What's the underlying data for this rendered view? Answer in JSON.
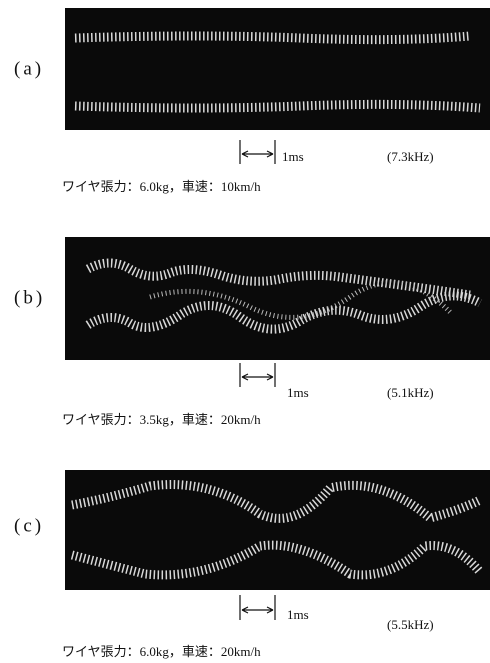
{
  "panels": [
    {
      "label": "(a)",
      "scale": "1ms",
      "frequency": "(7.3kHz)",
      "caption": "ワイヤ張力：6.0kg，車速：10km/h"
    },
    {
      "label": "(b)",
      "scale": "1ms",
      "frequency": "(5.1kHz)",
      "caption": "ワイヤ張力：3.5kg，車速：20km/h"
    },
    {
      "label": "(c)",
      "scale": "1ms",
      "frequency": "(5.5kHz)",
      "caption": "ワイヤ張力：6.0kg，車速：20km/h"
    }
  ]
}
